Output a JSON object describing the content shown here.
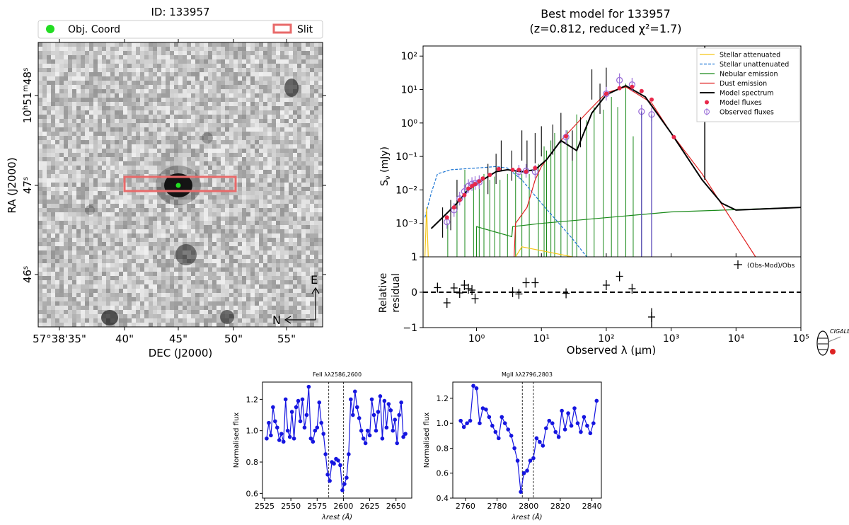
{
  "image_panel": {
    "title": "ID: 133957",
    "legend": [
      {
        "label": "Obj. Coord",
        "color": "#22dd22"
      },
      {
        "label": "Slit",
        "color": "#e86a6a"
      }
    ],
    "xlabel": "DEC (J2000)",
    "ylabel": "RA (J2000)",
    "xticks": [
      "57°38'35\"",
      "40\"",
      "45\"",
      "50\"",
      "55\""
    ],
    "yticks": [
      {
        "main": "10",
        "sup1": "h",
        "mid": "51",
        "sup2": "m",
        "end": "48",
        "sup3": "s"
      },
      {
        "main": "47",
        "sup1": "s"
      },
      {
        "main": "46",
        "sup1": "s"
      }
    ],
    "compass": {
      "e": "E",
      "n": "N"
    }
  },
  "sed_panel": {
    "title_line1": "Best model for 133957",
    "title_line2": "(z=0.812, reduced χ²=1.7)",
    "ylabel": "S",
    "ylabel_sub": "ν",
    "ylabel_unit": " (mJy)",
    "xlabel": "Observed λ (μm)",
    "residual_ylabel_1": "Relative",
    "residual_ylabel_2": "residual",
    "residual_legend": "(Obs-Mod)/Obs",
    "legend": [
      {
        "label": "Stellar attenuated",
        "color": "#f5c518",
        "style": "solid"
      },
      {
        "label": "Stellar unattenuated",
        "color": "#1f77d4",
        "style": "dashed"
      },
      {
        "label": "Nebular emission",
        "color": "#1a8a1a",
        "style": "solid"
      },
      {
        "label": "Dust emission",
        "color": "#e02020",
        "style": "solid"
      },
      {
        "label": "Model spectrum",
        "color": "#000000",
        "style": "solid"
      },
      {
        "label": "Model fluxes",
        "color": "#e8284a",
        "style": "dot"
      },
      {
        "label": "Observed fluxes",
        "color": "#9b6fd8",
        "style": "errorbar"
      }
    ],
    "logo_text": "CIGALE"
  },
  "chart_data": [
    {
      "type": "scatter",
      "title": "Best model for 133957 (z=0.812, reduced χ²=1.7)",
      "xscale": "log",
      "yscale": "log",
      "xlim": [
        0.15,
        100000
      ],
      "ylim": [
        0.0001,
        200
      ],
      "ytick_labels": [
        "1",
        "10⁻³",
        "10⁻²",
        "10⁻¹",
        "10⁰",
        "10¹",
        "10²"
      ],
      "xtick_labels": [
        "10⁰",
        "10¹",
        "10²",
        "10³",
        "10⁴",
        "10⁵"
      ],
      "model_fluxes": {
        "x": [
          0.35,
          0.45,
          0.55,
          0.65,
          0.75,
          0.85,
          0.95,
          1.1,
          1.25,
          1.6,
          2.2,
          3.6,
          4.5,
          5.8,
          8.0,
          24,
          100,
          160,
          250,
          350,
          500,
          1100
        ],
        "y": [
          0.0015,
          0.003,
          0.005,
          0.007,
          0.011,
          0.013,
          0.015,
          0.018,
          0.022,
          0.028,
          0.042,
          0.04,
          0.04,
          0.035,
          0.045,
          0.4,
          7.5,
          11,
          12,
          9,
          5,
          0.38
        ]
      },
      "observed_fluxes": {
        "x": [
          0.35,
          0.45,
          0.55,
          0.65,
          0.75,
          0.85,
          0.95,
          1.1,
          4.5,
          5.8,
          8.0,
          24,
          100,
          160,
          250,
          350,
          500
        ],
        "y": [
          0.0011,
          0.0025,
          0.0055,
          0.009,
          0.013,
          0.015,
          0.016,
          0.017,
          0.035,
          0.037,
          0.035,
          0.38,
          7.5,
          19,
          14,
          2.2,
          1.8
        ]
      },
      "residual": {
        "ylim": [
          -1,
          1
        ],
        "x": [
          0.25,
          0.35,
          0.45,
          0.55,
          0.65,
          0.75,
          0.85,
          0.95,
          3.6,
          4.5,
          5.8,
          8.0,
          24,
          100,
          160,
          250,
          500
        ],
        "y": [
          0.13,
          -0.3,
          0.12,
          -0.02,
          0.2,
          0.1,
          0.06,
          -0.18,
          0.0,
          -0.05,
          0.27,
          0.27,
          -0.03,
          0.2,
          0.45,
          0.1,
          -0.7
        ]
      }
    },
    {
      "type": "line",
      "title": "FeII λλ2586,2600",
      "xlabel": "λrest (Å)",
      "ylabel": "Normalised flux",
      "xlim": [
        2523,
        2665
      ],
      "ylim": [
        0.57,
        1.31
      ],
      "xticks": [
        2525,
        2550,
        2575,
        2600,
        2625,
        2650
      ],
      "yticks": [
        0.6,
        0.8,
        1.0,
        1.2
      ],
      "vlines": [
        2586,
        2600
      ],
      "x": [
        2527,
        2529,
        2531,
        2533,
        2535,
        2537,
        2539,
        2541,
        2543,
        2545,
        2547,
        2549,
        2551,
        2553,
        2555,
        2557,
        2559,
        2561,
        2563,
        2565,
        2567,
        2569,
        2571,
        2573,
        2575,
        2577,
        2579,
        2581,
        2583,
        2585,
        2587,
        2589,
        2591,
        2593,
        2595,
        2597,
        2599,
        2601,
        2603,
        2605,
        2607,
        2609,
        2611,
        2613,
        2615,
        2617,
        2619,
        2621,
        2623,
        2625,
        2627,
        2629,
        2631,
        2633,
        2635,
        2637,
        2639,
        2641,
        2643,
        2645,
        2647,
        2649,
        2651,
        2653,
        2655,
        2657,
        2659
      ],
      "y": [
        0.95,
        1.05,
        0.97,
        1.15,
        1.06,
        1.02,
        0.94,
        0.98,
        0.93,
        1.2,
        1.0,
        0.96,
        1.12,
        0.95,
        1.15,
        1.19,
        1.06,
        1.2,
        1.02,
        1.1,
        1.28,
        0.95,
        0.93,
        1.0,
        1.02,
        1.18,
        1.05,
        0.98,
        0.85,
        0.72,
        0.68,
        0.8,
        0.79,
        0.82,
        0.81,
        0.78,
        0.62,
        0.66,
        0.7,
        0.85,
        1.2,
        1.1,
        1.25,
        1.15,
        1.08,
        1.0,
        0.95,
        0.92,
        1.0,
        0.97,
        1.2,
        1.1,
        1.0,
        1.12,
        1.22,
        0.95,
        1.19,
        1.02,
        1.17,
        1.13,
        1.0,
        1.07,
        0.92,
        1.1,
        1.18,
        0.96,
        0.98
      ]
    },
    {
      "type": "line",
      "title": "MgII λλ2796,2803",
      "xlabel": "λrest (Å)",
      "ylabel": "Normalised flux",
      "xlim": [
        2752,
        2846
      ],
      "ylim": [
        0.4,
        1.33
      ],
      "xticks": [
        2760,
        2780,
        2800,
        2820,
        2840
      ],
      "yticks": [
        0.4,
        0.6,
        0.8,
        1.0,
        1.2
      ],
      "vlines": [
        2796,
        2803
      ],
      "x": [
        2757,
        2759,
        2761,
        2763,
        2765,
        2767,
        2769,
        2771,
        2773,
        2775,
        2777,
        2779,
        2781,
        2783,
        2785,
        2787,
        2789,
        2791,
        2793,
        2795,
        2797,
        2799,
        2801,
        2803,
        2805,
        2807,
        2809,
        2811,
        2813,
        2815,
        2817,
        2819,
        2821,
        2823,
        2825,
        2827,
        2829,
        2831,
        2833,
        2835,
        2837,
        2839,
        2841,
        2843
      ],
      "y": [
        1.02,
        0.97,
        1.0,
        1.02,
        1.3,
        1.28,
        1.0,
        1.12,
        1.11,
        1.05,
        0.98,
        0.93,
        0.88,
        1.05,
        1.0,
        0.95,
        0.9,
        0.8,
        0.7,
        0.45,
        0.6,
        0.62,
        0.7,
        0.72,
        0.88,
        0.85,
        0.82,
        0.96,
        1.02,
        1.0,
        0.93,
        0.89,
        1.1,
        0.95,
        1.08,
        0.98,
        1.12,
        1.0,
        0.93,
        1.05,
        0.98,
        0.92,
        1.0,
        1.18
      ]
    }
  ]
}
